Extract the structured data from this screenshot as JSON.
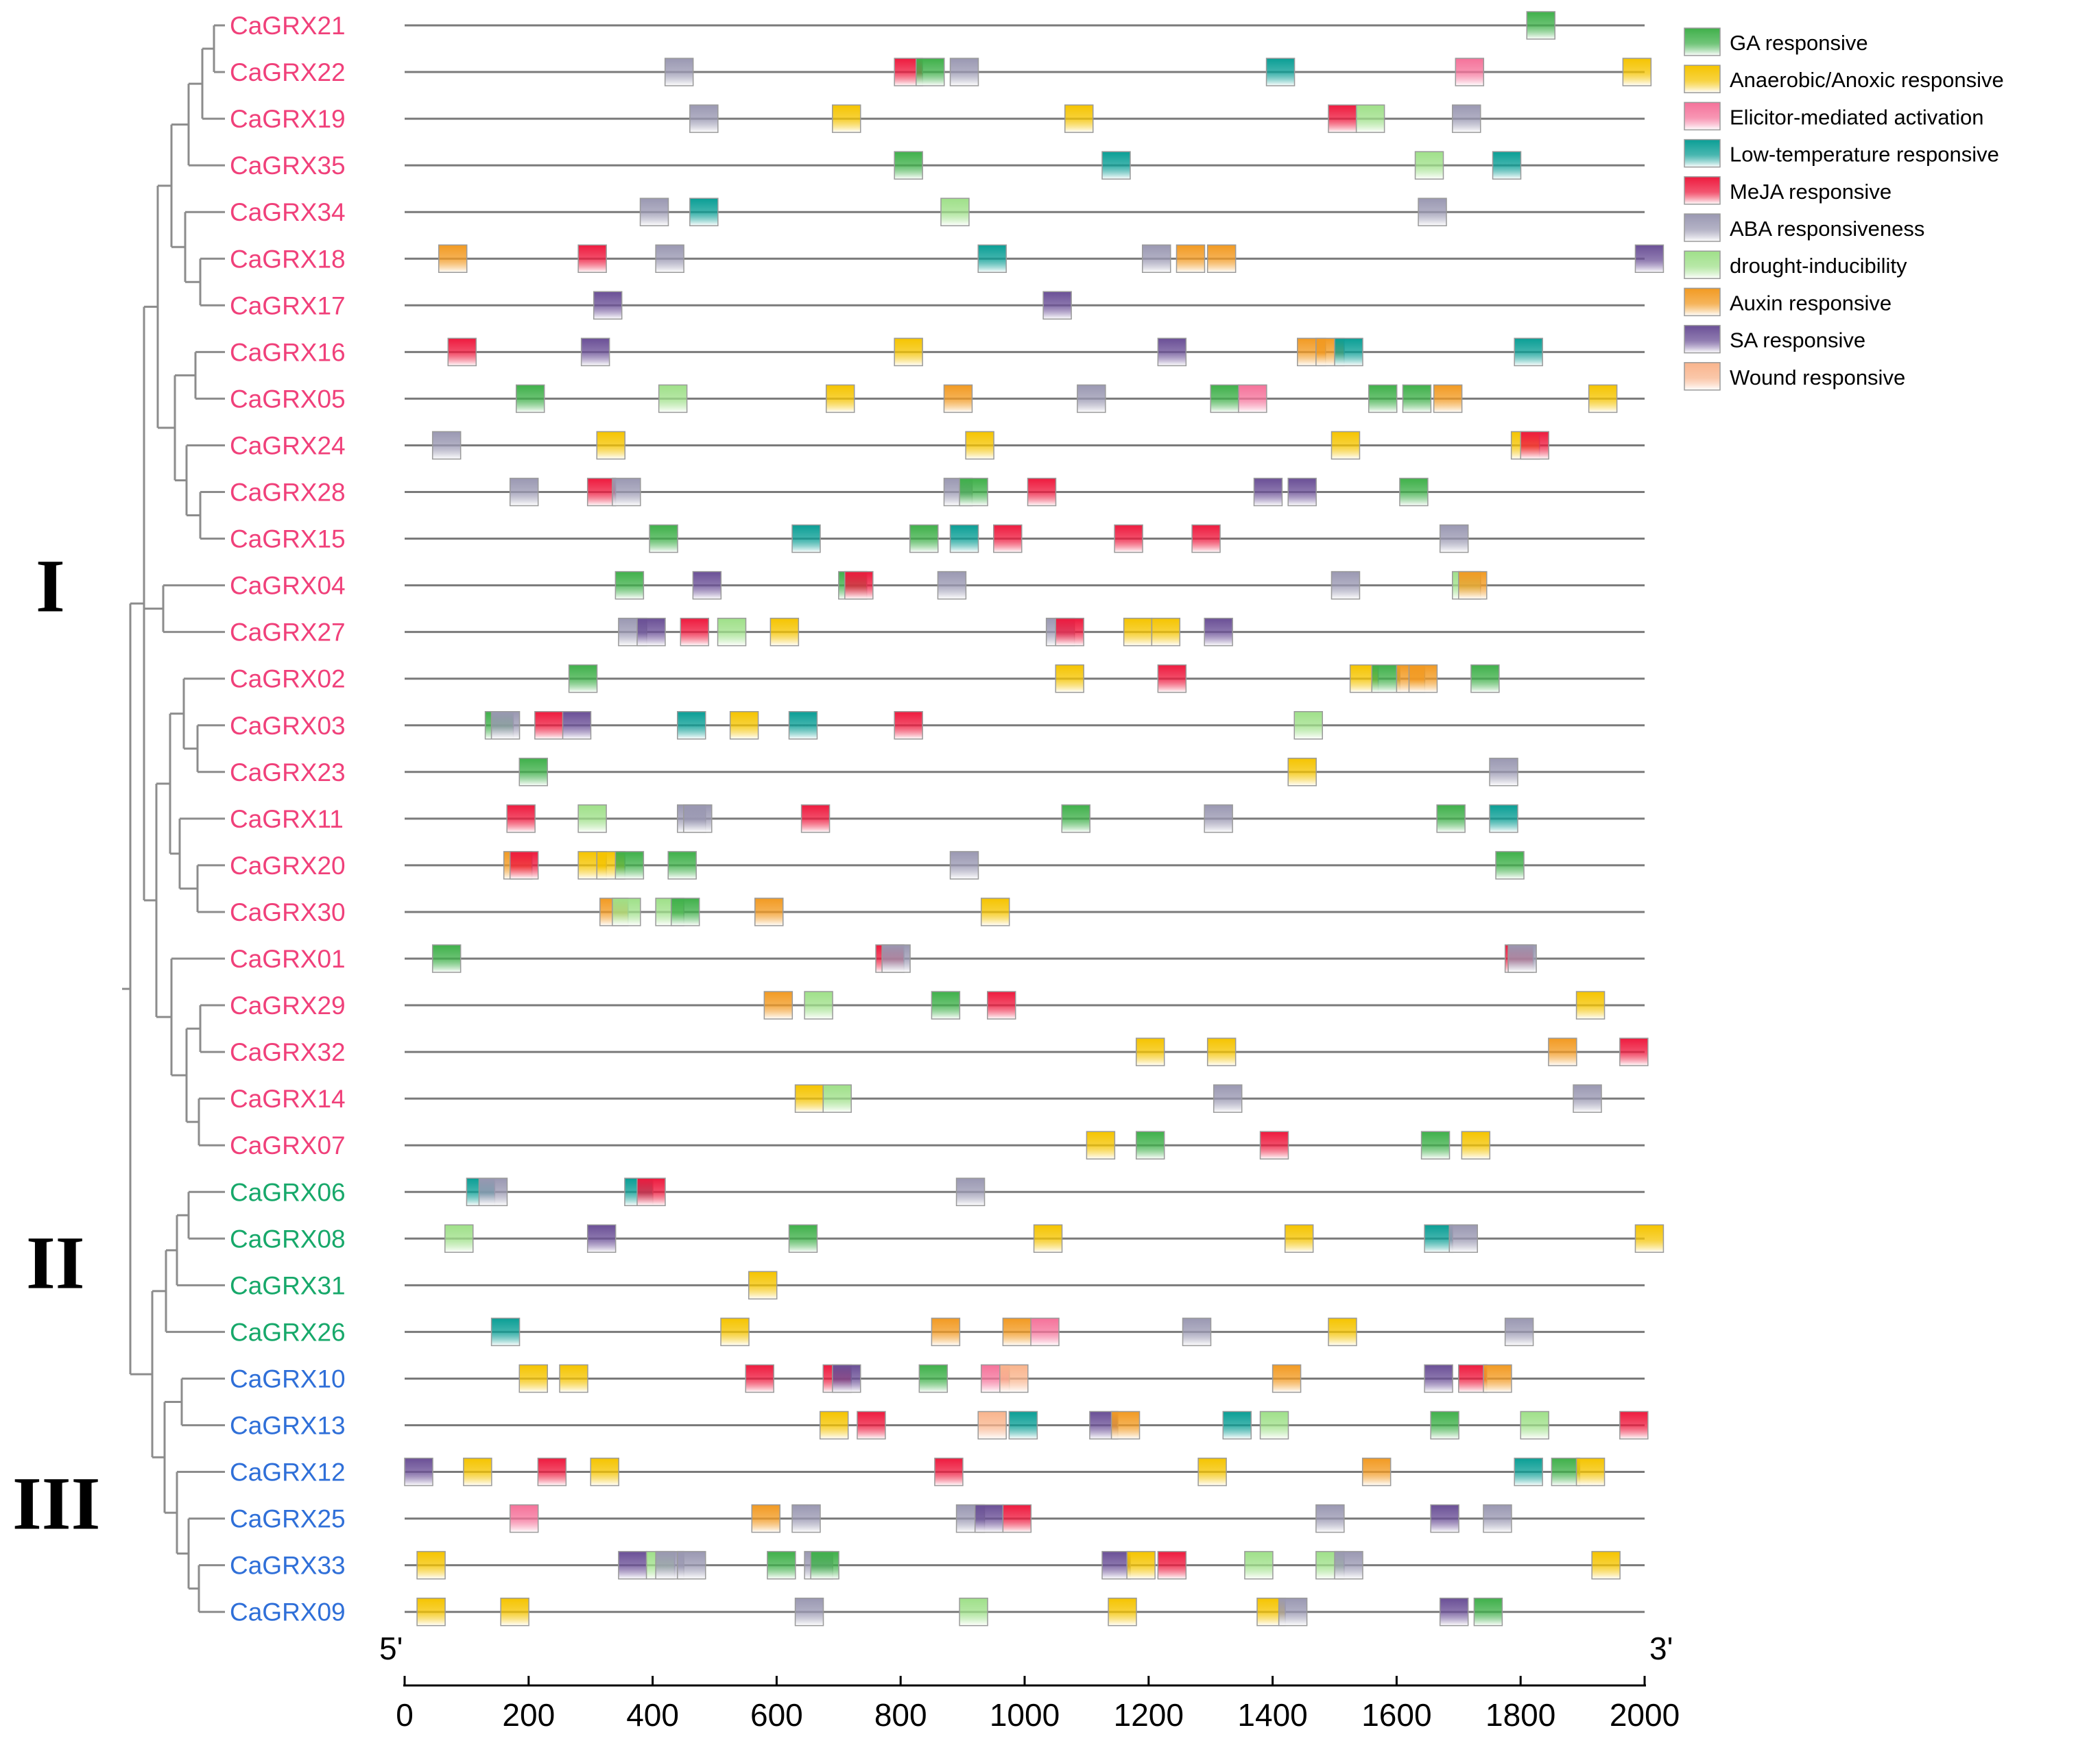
{
  "figure": {
    "five_prime": "5'",
    "three_prime": "3'",
    "axis_ticks": [
      0,
      200,
      400,
      600,
      800,
      1000,
      1200,
      1400,
      1600,
      1800,
      2000
    ],
    "axis_range": [
      0,
      2000
    ],
    "groups": [
      {
        "label": "I",
        "from": "CaGRX21",
        "to": "CaGRX07"
      },
      {
        "label": "II",
        "from": "CaGRX06",
        "to": "CaGRX26"
      },
      {
        "label": "III",
        "from": "CaGRX10",
        "to": "CaGRX09"
      }
    ]
  },
  "colors": {
    "subfamily_I": "#f0407a",
    "subfamily_II": "#17a86a",
    "subfamily_III": "#2f6fd8",
    "line": "#7a7a7a",
    "tree": "#8c8c8c"
  },
  "elements": [
    {
      "key": "GA",
      "label": "GA responsive",
      "color": "#3fb04a"
    },
    {
      "key": "AN",
      "label": "Anaerobic/Anoxic responsive",
      "color": "#f5c400"
    },
    {
      "key": "EL",
      "label": "Elicitor-mediated activation",
      "color": "#f5729a"
    },
    {
      "key": "LT",
      "label": "Low-temperature responsive",
      "color": "#0a9e95"
    },
    {
      "key": "MJ",
      "label": "MeJA responsive",
      "color": "#ee1a3e"
    },
    {
      "key": "AB",
      "label": "ABA responsiveness",
      "color": "#9a98b2"
    },
    {
      "key": "DR",
      "label": "drought-inducibility",
      "color": "#9fe089"
    },
    {
      "key": "AU",
      "label": "Auxin responsive",
      "color": "#f29a22"
    },
    {
      "key": "SA",
      "label": "SA responsive",
      "color": "#6a4f96"
    },
    {
      "key": "WO",
      "label": "Wound responsive",
      "color": "#f9b48c"
    }
  ],
  "genes": [
    {
      "name": "CaGRX21",
      "group": "I",
      "sites": [
        [
          "GA",
          1810
        ]
      ]
    },
    {
      "name": "CaGRX22",
      "group": "I",
      "sites": [
        [
          "AB",
          420
        ],
        [
          "MJ",
          790
        ],
        [
          "GA",
          825
        ],
        [
          "AB",
          880
        ],
        [
          "LT",
          1390
        ],
        [
          "EL",
          1695
        ],
        [
          "AN",
          1965
        ]
      ]
    },
    {
      "name": "CaGRX19",
      "group": "I",
      "sites": [
        [
          "AB",
          460
        ],
        [
          "AN",
          690
        ],
        [
          "AN",
          1065
        ],
        [
          "MJ",
          1490
        ],
        [
          "DR",
          1535
        ],
        [
          "AB",
          1690
        ]
      ]
    },
    {
      "name": "CaGRX35",
      "group": "I",
      "sites": [
        [
          "GA",
          790
        ],
        [
          "LT",
          1125
        ],
        [
          "DR",
          1630
        ],
        [
          "LT",
          1755
        ]
      ]
    },
    {
      "name": "CaGRX34",
      "group": "I",
      "sites": [
        [
          "AB",
          380
        ],
        [
          "LT",
          460
        ],
        [
          "DR",
          865
        ],
        [
          "AB",
          1635
        ]
      ]
    },
    {
      "name": "CaGRX18",
      "group": "I",
      "sites": [
        [
          "AU",
          55
        ],
        [
          "MJ",
          280
        ],
        [
          "AB",
          405
        ],
        [
          "LT",
          925
        ],
        [
          "AB",
          1190
        ],
        [
          "AU",
          1245
        ],
        [
          "AU",
          1295
        ],
        [
          "SA",
          1985
        ]
      ]
    },
    {
      "name": "CaGRX17",
      "group": "I",
      "sites": [
        [
          "SA",
          305
        ],
        [
          "SA",
          1030
        ]
      ]
    },
    {
      "name": "CaGRX16",
      "group": "I",
      "sites": [
        [
          "MJ",
          70
        ],
        [
          "SA",
          285
        ],
        [
          "AN",
          790
        ],
        [
          "SA",
          1215
        ],
        [
          "AU",
          1440
        ],
        [
          "AU",
          1470
        ],
        [
          "LT",
          1500
        ],
        [
          "LT",
          1790
        ]
      ]
    },
    {
      "name": "CaGRX05",
      "group": "I",
      "sites": [
        [
          "GA",
          180
        ],
        [
          "DR",
          410
        ],
        [
          "AN",
          680
        ],
        [
          "AU",
          870
        ],
        [
          "AB",
          1085
        ],
        [
          "GA",
          1300
        ],
        [
          "EL",
          1345
        ],
        [
          "GA",
          1555
        ],
        [
          "GA",
          1610
        ],
        [
          "AU",
          1660
        ],
        [
          "AN",
          1910
        ]
      ]
    },
    {
      "name": "CaGRX24",
      "group": "I",
      "sites": [
        [
          "AB",
          45
        ],
        [
          "AN",
          310
        ],
        [
          "AN",
          905
        ],
        [
          "AN",
          1495
        ],
        [
          "AN",
          1785
        ],
        [
          "MJ",
          1800
        ]
      ]
    },
    {
      "name": "CaGRX28",
      "group": "I",
      "sites": [
        [
          "AB",
          170
        ],
        [
          "MJ",
          295
        ],
        [
          "AB",
          335
        ],
        [
          "AB",
          870
        ],
        [
          "GA",
          895
        ],
        [
          "MJ",
          1005
        ],
        [
          "SA",
          1370
        ],
        [
          "SA",
          1425
        ],
        [
          "GA",
          1605
        ]
      ]
    },
    {
      "name": "CaGRX15",
      "group": "I",
      "sites": [
        [
          "GA",
          395
        ],
        [
          "LT",
          625
        ],
        [
          "GA",
          815
        ],
        [
          "LT",
          880
        ],
        [
          "MJ",
          950
        ],
        [
          "MJ",
          1145
        ],
        [
          "MJ",
          1270
        ],
        [
          "AB",
          1670
        ]
      ]
    },
    {
      "name": "CaGRX04",
      "group": "I",
      "sites": [
        [
          "GA",
          340
        ],
        [
          "SA",
          465
        ],
        [
          "GA",
          700
        ],
        [
          "MJ",
          710
        ],
        [
          "AB",
          860
        ],
        [
          "AB",
          1495
        ],
        [
          "DR",
          1690
        ],
        [
          "AU",
          1700
        ]
      ]
    },
    {
      "name": "CaGRX27",
      "group": "I",
      "sites": [
        [
          "AB",
          345
        ],
        [
          "SA",
          375
        ],
        [
          "MJ",
          445
        ],
        [
          "DR",
          505
        ],
        [
          "AN",
          590
        ],
        [
          "AB",
          1035
        ],
        [
          "MJ",
          1050
        ],
        [
          "AN",
          1160
        ],
        [
          "AN",
          1205
        ],
        [
          "SA",
          1290
        ]
      ]
    },
    {
      "name": "CaGRX02",
      "group": "I",
      "sites": [
        [
          "GA",
          265
        ],
        [
          "AN",
          1050
        ],
        [
          "MJ",
          1215
        ],
        [
          "AN",
          1525
        ],
        [
          "GA",
          1560
        ],
        [
          "AU",
          1600
        ],
        [
          "AU",
          1620
        ],
        [
          "GA",
          1720
        ]
      ]
    },
    {
      "name": "CaGRX03",
      "group": "I",
      "sites": [
        [
          "GA",
          130
        ],
        [
          "AB",
          140
        ],
        [
          "MJ",
          210
        ],
        [
          "SA",
          255
        ],
        [
          "LT",
          440
        ],
        [
          "AN",
          525
        ],
        [
          "LT",
          620
        ],
        [
          "MJ",
          790
        ],
        [
          "DR",
          1435
        ]
      ]
    },
    {
      "name": "CaGRX23",
      "group": "I",
      "sites": [
        [
          "GA",
          185
        ],
        [
          "AN",
          1425
        ],
        [
          "AB",
          1750
        ]
      ]
    },
    {
      "name": "CaGRX11",
      "group": "I",
      "sites": [
        [
          "MJ",
          165
        ],
        [
          "DR",
          280
        ],
        [
          "AB",
          440
        ],
        [
          "AB",
          450
        ],
        [
          "MJ",
          640
        ],
        [
          "GA",
          1060
        ],
        [
          "AB",
          1290
        ],
        [
          "GA",
          1665
        ],
        [
          "LT",
          1750
        ]
      ]
    },
    {
      "name": "CaGRX20",
      "group": "I",
      "sites": [
        [
          "AU",
          160
        ],
        [
          "MJ",
          170
        ],
        [
          "AN",
          280
        ],
        [
          "AN",
          310
        ],
        [
          "GA",
          340
        ],
        [
          "GA",
          425
        ],
        [
          "AB",
          880
        ],
        [
          "GA",
          1760
        ]
      ]
    },
    {
      "name": "CaGRX30",
      "group": "I",
      "sites": [
        [
          "AU",
          315
        ],
        [
          "DR",
          335
        ],
        [
          "DR",
          405
        ],
        [
          "GA",
          430
        ],
        [
          "AU",
          565
        ],
        [
          "AN",
          930
        ]
      ]
    },
    {
      "name": "CaGRX01",
      "group": "I",
      "sites": [
        [
          "GA",
          45
        ],
        [
          "MJ",
          760
        ],
        [
          "AB",
          770
        ],
        [
          "MJ",
          1775
        ],
        [
          "AB",
          1780
        ]
      ]
    },
    {
      "name": "CaGRX29",
      "group": "I",
      "sites": [
        [
          "AU",
          580
        ],
        [
          "DR",
          645
        ],
        [
          "GA",
          850
        ],
        [
          "MJ",
          940
        ],
        [
          "AN",
          1890
        ]
      ]
    },
    {
      "name": "CaGRX32",
      "group": "I",
      "sites": [
        [
          "AN",
          1180
        ],
        [
          "AN",
          1295
        ],
        [
          "AU",
          1845
        ],
        [
          "MJ",
          1960
        ]
      ]
    },
    {
      "name": "CaGRX14",
      "group": "I",
      "sites": [
        [
          "AN",
          630
        ],
        [
          "DR",
          675
        ],
        [
          "AB",
          1305
        ],
        [
          "AB",
          1885
        ]
      ]
    },
    {
      "name": "CaGRX07",
      "group": "I",
      "sites": [
        [
          "AN",
          1100
        ],
        [
          "GA",
          1180
        ],
        [
          "MJ",
          1380
        ],
        [
          "GA",
          1640
        ],
        [
          "AN",
          1705
        ]
      ]
    },
    {
      "name": "CaGRX06",
      "group": "II",
      "sites": [
        [
          "LT",
          100
        ],
        [
          "AB",
          120
        ],
        [
          "LT",
          355
        ],
        [
          "MJ",
          375
        ],
        [
          "AB",
          890
        ]
      ]
    },
    {
      "name": "CaGRX08",
      "group": "II",
      "sites": [
        [
          "DR",
          65
        ],
        [
          "SA",
          295
        ],
        [
          "GA",
          620
        ],
        [
          "AN",
          1015
        ],
        [
          "AN",
          1420
        ],
        [
          "LT",
          1645
        ],
        [
          "AB",
          1685
        ],
        [
          "AN",
          1985
        ]
      ]
    },
    {
      "name": "CaGRX31",
      "group": "II",
      "sites": [
        [
          "AN",
          555
        ]
      ]
    },
    {
      "name": "CaGRX26",
      "group": "II",
      "sites": [
        [
          "LT",
          140
        ],
        [
          "AN",
          510
        ],
        [
          "AU",
          850
        ],
        [
          "AU",
          965
        ],
        [
          "EL",
          1010
        ],
        [
          "AB",
          1255
        ],
        [
          "AN",
          1490
        ],
        [
          "AB",
          1775
        ]
      ]
    },
    {
      "name": "CaGRX10",
      "group": "III",
      "sites": [
        [
          "AN",
          185
        ],
        [
          "AN",
          250
        ],
        [
          "MJ",
          550
        ],
        [
          "MJ",
          675
        ],
        [
          "SA",
          690
        ],
        [
          "GA",
          830
        ],
        [
          "EL",
          930
        ],
        [
          "WO",
          960
        ],
        [
          "AU",
          1400
        ],
        [
          "SA",
          1645
        ],
        [
          "MJ",
          1700
        ],
        [
          "AU",
          1740
        ]
      ]
    },
    {
      "name": "CaGRX13",
      "group": "III",
      "sites": [
        [
          "AN",
          670
        ],
        [
          "MJ",
          730
        ],
        [
          "WO",
          925
        ],
        [
          "LT",
          975
        ],
        [
          "SA",
          1105
        ],
        [
          "AU",
          1140
        ],
        [
          "LT",
          1320
        ],
        [
          "DR",
          1380
        ],
        [
          "GA",
          1655
        ],
        [
          "DR",
          1800
        ],
        [
          "MJ",
          1960
        ]
      ]
    },
    {
      "name": "CaGRX12",
      "group": "III",
      "sites": [
        [
          "SA",
          0
        ],
        [
          "AN",
          95
        ],
        [
          "MJ",
          215
        ],
        [
          "AN",
          300
        ],
        [
          "MJ",
          855
        ],
        [
          "AN",
          1280
        ],
        [
          "AU",
          1545
        ],
        [
          "LT",
          1790
        ],
        [
          "GA",
          1850
        ],
        [
          "AN",
          1890
        ]
      ]
    },
    {
      "name": "CaGRX25",
      "group": "III",
      "sites": [
        [
          "EL",
          170
        ],
        [
          "AU",
          560
        ],
        [
          "AB",
          625
        ],
        [
          "AB",
          890
        ],
        [
          "SA",
          920
        ],
        [
          "MJ",
          965
        ],
        [
          "AB",
          1470
        ],
        [
          "SA",
          1655
        ],
        [
          "AB",
          1740
        ]
      ]
    },
    {
      "name": "CaGRX33",
      "group": "III",
      "sites": [
        [
          "AN",
          20
        ],
        [
          "SA",
          345
        ],
        [
          "DR",
          390
        ],
        [
          "AB",
          405
        ],
        [
          "AB",
          440
        ],
        [
          "GA",
          585
        ],
        [
          "AB",
          645
        ],
        [
          "GA",
          655
        ],
        [
          "SA",
          1125
        ],
        [
          "AN",
          1165
        ],
        [
          "MJ",
          1215
        ],
        [
          "DR",
          1355
        ],
        [
          "DR",
          1470
        ],
        [
          "AB",
          1500
        ],
        [
          "AN",
          1915
        ]
      ]
    },
    {
      "name": "CaGRX09",
      "group": "III",
      "sites": [
        [
          "AN",
          20
        ],
        [
          "AN",
          155
        ],
        [
          "AB",
          630
        ],
        [
          "DR",
          895
        ],
        [
          "AN",
          1135
        ],
        [
          "AN",
          1375
        ],
        [
          "AB",
          1410
        ],
        [
          "SA",
          1670
        ],
        [
          "GA",
          1725
        ]
      ]
    }
  ]
}
